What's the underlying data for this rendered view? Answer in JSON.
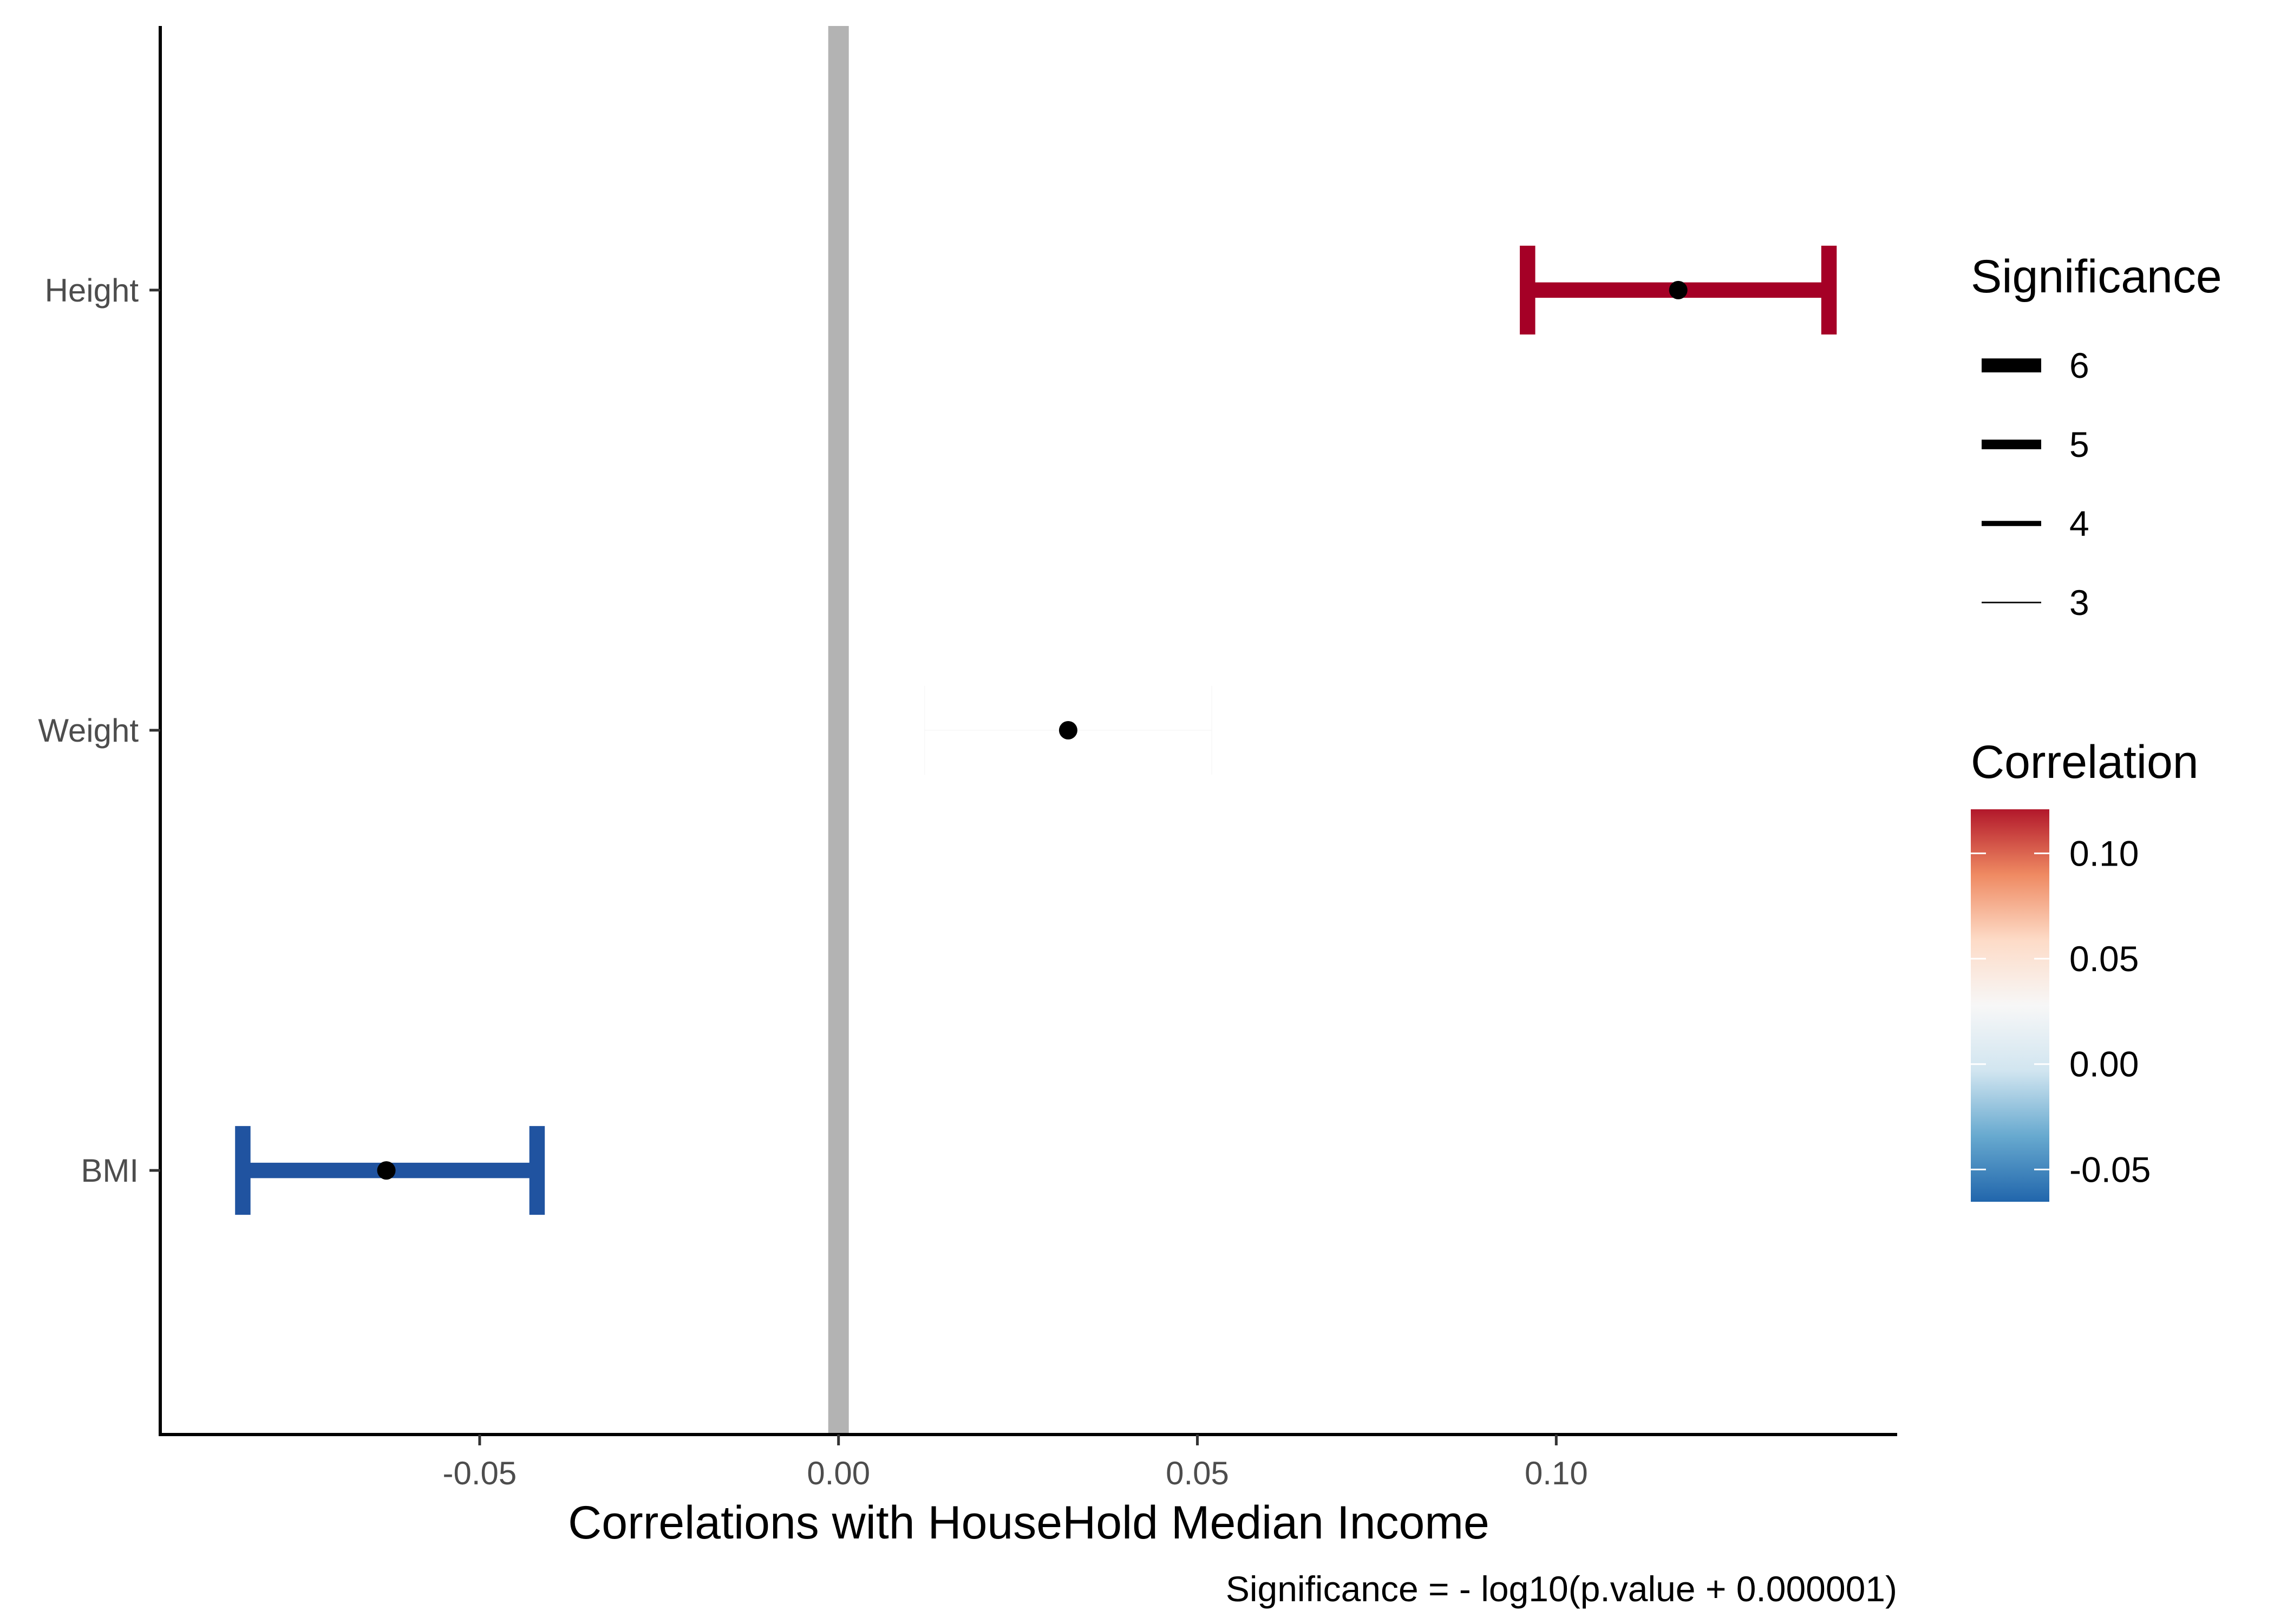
{
  "chart_data": {
    "type": "errorbar",
    "title": "",
    "xlabel": "Correlations with HouseHold Median Income",
    "ylabel": "",
    "caption": "Significance = - log10(p.value + 0.000001)",
    "xlim": [
      -0.0945,
      0.1475
    ],
    "x_ticks": [
      -0.05,
      0.0,
      0.05,
      0.1
    ],
    "x_tick_labels": [
      "-0.05",
      "0.00",
      "0.05",
      "0.10"
    ],
    "reference_line_x": 0,
    "categories": [
      "Height",
      "Weight",
      "BMI"
    ],
    "points": [
      {
        "label": "Height",
        "estimate": 0.117,
        "ci_low": 0.096,
        "ci_high": 0.138,
        "correlation": 0.117,
        "significance": 6,
        "color": "#a50026"
      },
      {
        "label": "Weight",
        "estimate": 0.032,
        "ci_low": 0.012,
        "ci_high": 0.052,
        "correlation": 0.032,
        "significance": 3,
        "color": "#f7f7f7"
      },
      {
        "label": "BMI",
        "estimate": -0.063,
        "ci_low": -0.083,
        "ci_high": -0.042,
        "correlation": -0.063,
        "significance": 6,
        "color": "#2053a0"
      }
    ],
    "legend_significance": {
      "title": "Significance",
      "entries": [
        {
          "label": "6",
          "value": 6
        },
        {
          "label": "5",
          "value": 5
        },
        {
          "label": "4",
          "value": 4
        },
        {
          "label": "3",
          "value": 3
        }
      ]
    },
    "legend_correlation": {
      "title": "Correlation",
      "range": [
        -0.0653,
        0.1209
      ],
      "tick_values": [
        0.1,
        0.05,
        0.0,
        -0.05
      ],
      "tick_labels": [
        "0.10",
        "0.05",
        "0.00",
        "-0.05"
      ],
      "colors": [
        "#2166ac",
        "#67a9cf",
        "#d1e5f0",
        "#f7f7f7",
        "#fddbc7",
        "#ef8a62",
        "#b2182b"
      ]
    },
    "grid": false,
    "legend_position": "right"
  }
}
